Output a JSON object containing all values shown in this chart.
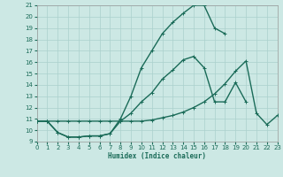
{
  "xlabel": "Humidex (Indice chaleur)",
  "background_color": "#cce8e4",
  "grid_color": "#aad0cc",
  "line_color": "#1a6b58",
  "xlim": [
    0,
    23
  ],
  "ylim": [
    9,
    21
  ],
  "xticks": [
    0,
    1,
    2,
    3,
    4,
    5,
    6,
    7,
    8,
    9,
    10,
    11,
    12,
    13,
    14,
    15,
    16,
    17,
    18,
    19,
    20,
    21,
    22,
    23
  ],
  "yticks": [
    9,
    10,
    11,
    12,
    13,
    14,
    15,
    16,
    17,
    18,
    19,
    20,
    21
  ],
  "line1_x": [
    0,
    1,
    2,
    3,
    4,
    5,
    6,
    7,
    8,
    9,
    10,
    11,
    12,
    13,
    14,
    15,
    16,
    17,
    18,
    19,
    20,
    21,
    22,
    23
  ],
  "line1_y": [
    10.8,
    10.8,
    10.8,
    10.8,
    10.8,
    10.8,
    10.8,
    10.8,
    10.8,
    10.8,
    10.8,
    10.9,
    11.1,
    11.3,
    11.6,
    12.0,
    12.5,
    13.2,
    14.1,
    15.2,
    16.1,
    11.5,
    10.5,
    11.3
  ],
  "line2_x": [
    0,
    1,
    2,
    3,
    4,
    5,
    6,
    7,
    8,
    9,
    10,
    11,
    12,
    13,
    14,
    15,
    16,
    17,
    18,
    19,
    20
  ],
  "line2_y": [
    10.8,
    10.8,
    9.8,
    9.4,
    9.4,
    9.5,
    9.5,
    9.7,
    10.8,
    11.5,
    12.5,
    13.3,
    14.5,
    15.3,
    16.2,
    16.5,
    15.5,
    12.5,
    12.5,
    14.2,
    12.5
  ],
  "line3_x": [
    0,
    1,
    2,
    3,
    4,
    5,
    6,
    7,
    8,
    9,
    10,
    11,
    12,
    13,
    14,
    15,
    16,
    17,
    18
  ],
  "line3_y": [
    10.8,
    10.8,
    9.8,
    9.4,
    9.4,
    9.5,
    9.5,
    9.7,
    11.0,
    13.0,
    15.5,
    17.0,
    18.5,
    19.5,
    20.3,
    21.0,
    21.0,
    19.0,
    18.5
  ],
  "linewidth": 1.0,
  "markersize": 2.5,
  "tick_fontsize": 5.0,
  "xlabel_fontsize": 5.5
}
